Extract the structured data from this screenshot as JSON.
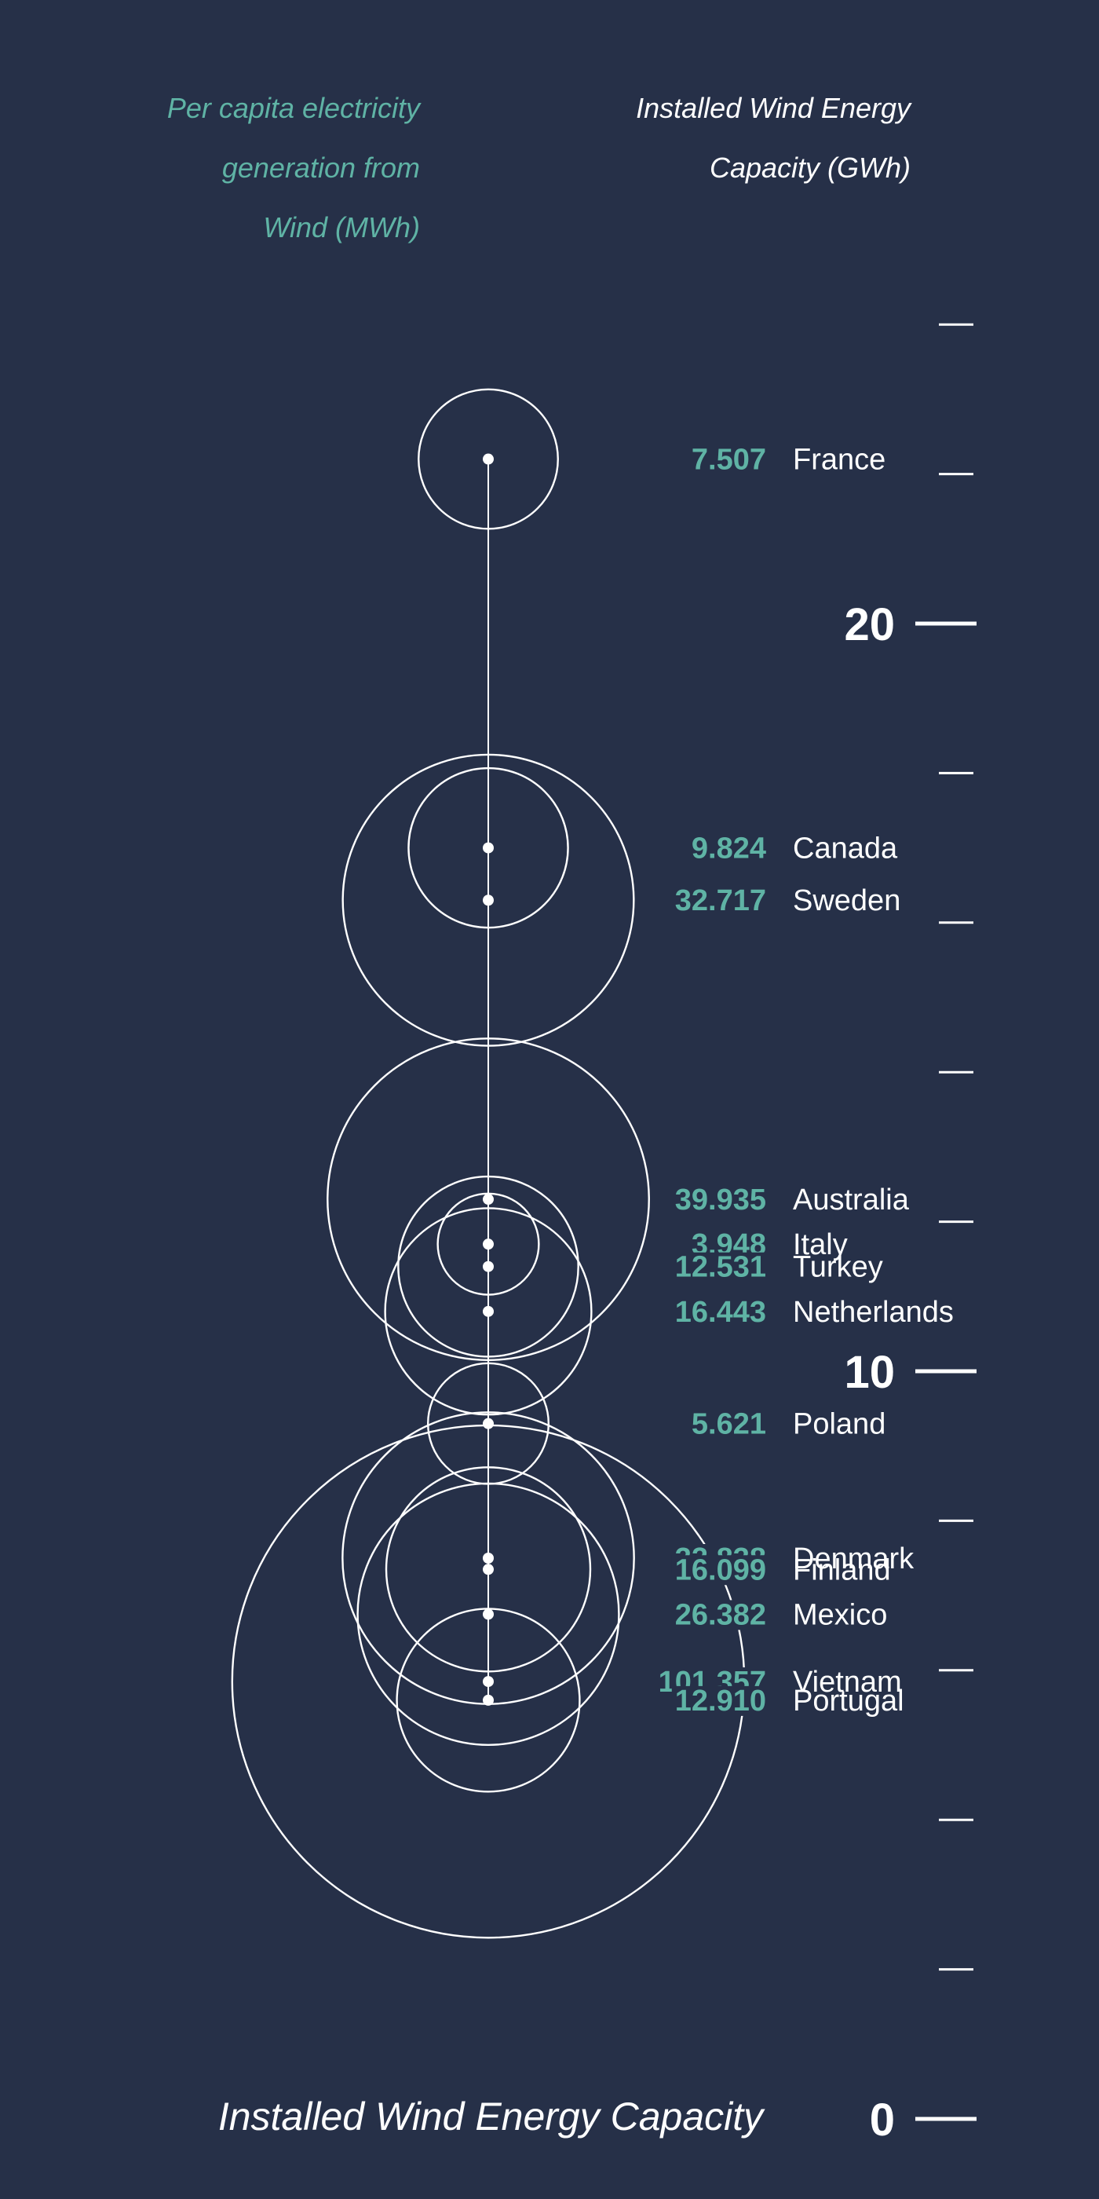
{
  "header": {
    "left_line1": "Per capita electricity",
    "left_line2": "generation from",
    "left_line3": "Wind (MWh)",
    "right_line1": "Installed Wind Energy",
    "right_line2": "Capacity (GWh)"
  },
  "bottom_title": "Installed Wind Energy Capacity",
  "colors": {
    "background": "#263048",
    "accent": "#5fb3a5",
    "line": "#ffffff"
  },
  "chart_data": {
    "type": "bubble",
    "ylim": [
      0,
      25
    ],
    "y_major_ticks": [
      {
        "value": 0,
        "label": "0"
      },
      {
        "value": 10,
        "label": "10"
      },
      {
        "value": 20,
        "label": "20"
      }
    ],
    "y_minor_ticks": [
      2,
      4,
      6,
      8,
      12,
      14,
      16,
      18,
      22,
      24
    ],
    "points": [
      {
        "country": "France",
        "per_capita": "7.507",
        "capacity": 22.2
      },
      {
        "country": "Canada",
        "per_capita": "9.824",
        "capacity": 17.0
      },
      {
        "country": "Sweden",
        "per_capita": "32.717",
        "capacity": 16.3
      },
      {
        "country": "Australia",
        "per_capita": "39.935",
        "capacity": 12.3
      },
      {
        "country": "Italy",
        "per_capita": "3.948",
        "capacity": 11.7
      },
      {
        "country": "Turkey",
        "per_capita": "12.531",
        "capacity": 11.4
      },
      {
        "country": "Netherlands",
        "per_capita": "16.443",
        "capacity": 10.8
      },
      {
        "country": "Poland",
        "per_capita": "5.621",
        "capacity": 9.3
      },
      {
        "country": "Denmark",
        "per_capita": "32.838",
        "capacity": 7.5
      },
      {
        "country": "Finland",
        "per_capita": "16.099",
        "capacity": 7.35
      },
      {
        "country": "Mexico",
        "per_capita": "26.382",
        "capacity": 6.75
      },
      {
        "country": "Vietnam",
        "per_capita": "101.357",
        "capacity": 5.85
      },
      {
        "country": "Portugal",
        "per_capita": "12.910",
        "capacity": 5.6
      }
    ]
  }
}
